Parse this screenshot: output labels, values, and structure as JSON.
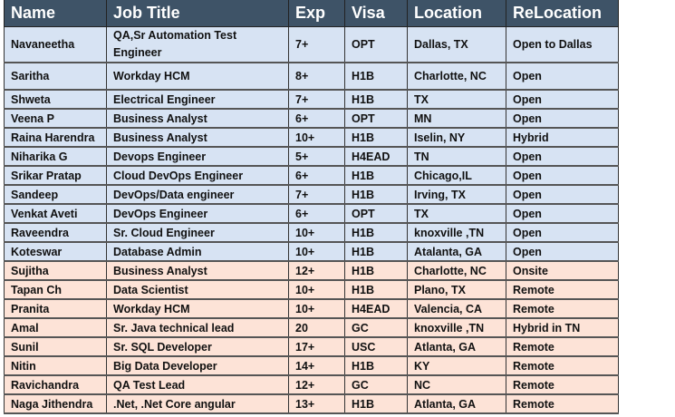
{
  "colors": {
    "header": "#3e5367",
    "group1": "#d7e3f3",
    "group2": "#fde3d7"
  },
  "headers": [
    "Name",
    "Job Title",
    "Exp",
    "Visa",
    "Location",
    "ReLocation"
  ],
  "rows": [
    {
      "g": "blue",
      "c": [
        "Navaneetha",
        "QA,Sr Automation Test Engineer",
        "7+",
        "OPT",
        "Dallas, TX",
        "Open to Dallas"
      ]
    },
    {
      "g": "blue",
      "c": [
        "Saritha",
        "Workday HCM",
        "8+",
        "H1B",
        "Charlotte, NC",
        "Open"
      ]
    },
    {
      "g": "blue",
      "c": [
        "Shweta",
        "Electrical Engineer",
        "7+",
        "H1B",
        "TX",
        "Open"
      ]
    },
    {
      "g": "blue",
      "c": [
        "Veena P",
        "Business Analyst",
        "6+",
        "OPT",
        "MN",
        "Open"
      ]
    },
    {
      "g": "blue",
      "c": [
        "Raina Harendra",
        "Business Analyst",
        "10+",
        "H1B",
        "Iselin, NY",
        "Hybrid"
      ]
    },
    {
      "g": "blue",
      "c": [
        "Niharika G",
        "Devops Engineer",
        "5+",
        "H4EAD",
        "TN",
        "Open"
      ]
    },
    {
      "g": "blue",
      "c": [
        "Srikar Pratap",
        "Cloud DevOps Engineer",
        "6+",
        "H1B",
        "Chicago,IL",
        "Open"
      ]
    },
    {
      "g": "blue",
      "c": [
        "Sandeep",
        "DevOps/Data engineer",
        "7+",
        "H1B",
        "Irving, TX",
        "Open"
      ]
    },
    {
      "g": "blue",
      "c": [
        "Venkat Aveti",
        "DevOps Engineer",
        "6+",
        "OPT",
        "TX",
        "Open"
      ]
    },
    {
      "g": "blue",
      "c": [
        "Raveendra",
        "Sr. Cloud Engineer",
        "10+",
        "H1B",
        "knoxville ,TN",
        "Open"
      ]
    },
    {
      "g": "blue",
      "c": [
        "Koteswar",
        "Database Admin",
        "10+",
        "H1B",
        "Atalanta, GA",
        "Open"
      ]
    },
    {
      "g": "peach",
      "c": [
        "Sujitha",
        "Business Analyst",
        "12+",
        "H1B",
        "Charlotte, NC",
        "Onsite"
      ]
    },
    {
      "g": "peach",
      "c": [
        "Tapan Ch",
        "Data Scientist",
        "10+",
        "H1B",
        "Plano, TX",
        "Remote"
      ]
    },
    {
      "g": "peach",
      "c": [
        "Pranita",
        "Workday HCM",
        "10+",
        "H4EAD",
        "Valencia, CA",
        "Remote"
      ]
    },
    {
      "g": "peach",
      "c": [
        "Amal",
        "Sr. Java technical lead",
        "20",
        "GC",
        "knoxville ,TN",
        "Hybrid in TN"
      ]
    },
    {
      "g": "peach",
      "c": [
        "Sunil",
        "Sr. SQL Developer",
        "17+",
        "USC",
        "Atlanta, GA",
        "Remote"
      ]
    },
    {
      "g": "peach",
      "c": [
        "Nitin",
        "Big Data Developer",
        "14+",
        "H1B",
        "KY",
        "Remote"
      ]
    },
    {
      "g": "peach",
      "c": [
        "Ravichandra",
        "QA Test Lead",
        "12+",
        "GC",
        "NC",
        "Remote"
      ]
    },
    {
      "g": "peach",
      "c": [
        "Naga Jithendra",
        ".Net, .Net Core angular",
        "13+",
        "H1B",
        "Atlanta, GA",
        "Remote"
      ]
    }
  ]
}
